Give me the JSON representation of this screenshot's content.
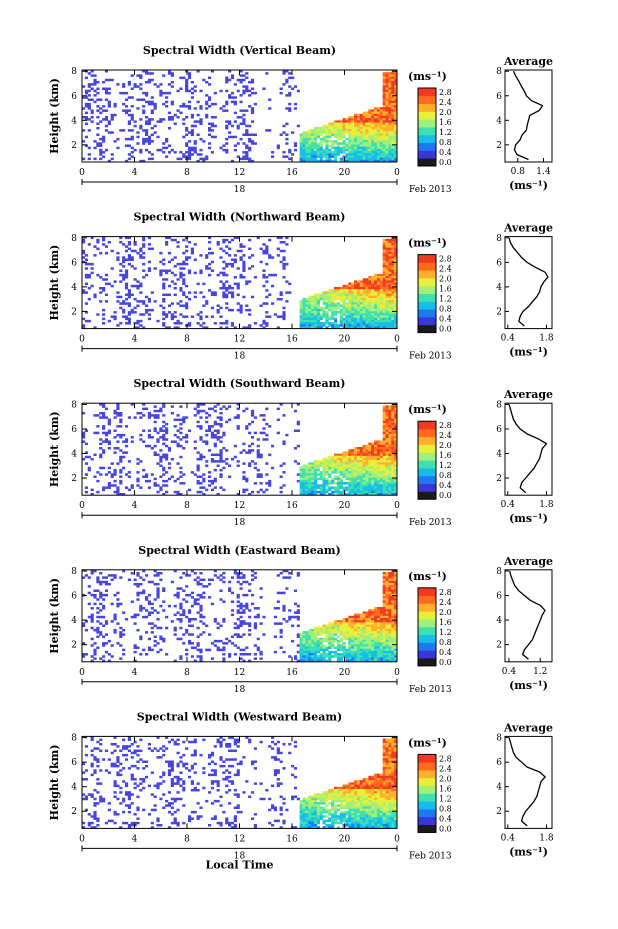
{
  "figure": {
    "x_axis_title": "Local Time",
    "date_label": "Feb 2013",
    "day_label": "18",
    "unit_label": "(ms⁻¹)",
    "colorbar_ticks": [
      "0.0",
      "0.4",
      "0.8",
      "1.2",
      "1.6",
      "2.0",
      "2.4",
      "2.8"
    ],
    "colormap": [
      "#1a1a1a",
      "#3a37d6",
      "#1e78f0",
      "#15bde8",
      "#3fe0b0",
      "#9ef07a",
      "#e8ee3a",
      "#ffb02a",
      "#ff6a1e",
      "#f03a22"
    ],
    "sparse_color": "#4646de",
    "avg_title": "Average",
    "avg_xlabel": "(ms⁻¹)"
  },
  "chart_data": [
    {
      "type": "heatmap",
      "title": "Spectral Width (Vertical Beam)",
      "xlabel": "",
      "ylabel": "Height (km)",
      "x_ticks": [
        "0",
        "4",
        "8",
        "12",
        "16",
        "20",
        "0"
      ],
      "xlim": [
        0,
        24
      ],
      "y_ticks": [
        "2",
        "4",
        "6",
        "8"
      ],
      "ylim": [
        0.6,
        8.1
      ],
      "profile": {
        "title": "Average",
        "xlabel": "(ms⁻¹)",
        "x_ticks": [
          "0.8",
          "1.4"
        ],
        "xlim": [
          0.5,
          1.6
        ],
        "ylim": [
          0.6,
          8.1
        ],
        "y_ticks": [
          "2",
          "4",
          "6",
          "8"
        ],
        "heights": [
          0.8,
          1.2,
          1.6,
          2.0,
          2.4,
          2.8,
          3.2,
          3.6,
          4.0,
          4.4,
          4.8,
          5.2,
          5.6,
          6.0,
          6.4,
          6.8,
          7.2,
          7.6,
          8.0
        ],
        "values": [
          1.05,
          0.78,
          0.72,
          0.75,
          0.85,
          0.9,
          1.0,
          1.02,
          1.05,
          1.08,
          1.3,
          1.38,
          1.12,
          1.0,
          0.95,
          0.88,
          0.82,
          0.75,
          0.7
        ]
      }
    },
    {
      "type": "heatmap",
      "title": "Spectral Width (Northward Beam)",
      "xlabel": "",
      "ylabel": "Height (km)",
      "x_ticks": [
        "0",
        "4",
        "8",
        "12",
        "16",
        "20",
        "0"
      ],
      "xlim": [
        0,
        24
      ],
      "y_ticks": [
        "2",
        "4",
        "6",
        "8"
      ],
      "ylim": [
        0.6,
        8.1
      ],
      "profile": {
        "title": "Average",
        "xlabel": "(ms⁻¹)",
        "x_ticks": [
          "0.4",
          "1.8"
        ],
        "xlim": [
          0.3,
          2.0
        ],
        "ylim": [
          0.6,
          8.1
        ],
        "y_ticks": [
          "2",
          "4",
          "6",
          "8"
        ],
        "heights": [
          0.8,
          1.2,
          1.6,
          2.0,
          2.4,
          2.8,
          3.2,
          3.6,
          4.0,
          4.4,
          4.8,
          5.2,
          5.6,
          6.0,
          6.4,
          6.8,
          7.2,
          7.6,
          8.0
        ],
        "values": [
          1.0,
          0.8,
          0.85,
          0.95,
          1.15,
          1.3,
          1.45,
          1.55,
          1.6,
          1.7,
          1.85,
          1.75,
          1.4,
          1.1,
          0.9,
          0.75,
          0.6,
          0.5,
          0.45
        ]
      }
    },
    {
      "type": "heatmap",
      "title": "Spectral Width (Southward Beam)",
      "xlabel": "",
      "ylabel": "Height (km)",
      "x_ticks": [
        "0",
        "4",
        "8",
        "12",
        "16",
        "20",
        "0"
      ],
      "xlim": [
        0,
        24
      ],
      "y_ticks": [
        "2",
        "4",
        "6",
        "8"
      ],
      "ylim": [
        0.6,
        8.1
      ],
      "profile": {
        "title": "Average",
        "xlabel": "(ms⁻¹)",
        "x_ticks": [
          "0.4",
          "1.8"
        ],
        "xlim": [
          0.3,
          2.0
        ],
        "ylim": [
          0.6,
          8.1
        ],
        "y_ticks": [
          "2",
          "4",
          "6",
          "8"
        ],
        "heights": [
          0.8,
          1.2,
          1.6,
          2.0,
          2.4,
          2.8,
          3.2,
          3.6,
          4.0,
          4.4,
          4.8,
          5.2,
          5.6,
          6.0,
          6.4,
          6.8,
          7.2,
          7.6,
          8.0
        ],
        "values": [
          1.05,
          0.85,
          0.9,
          1.05,
          1.2,
          1.35,
          1.45,
          1.55,
          1.6,
          1.65,
          1.8,
          1.5,
          1.1,
          0.85,
          0.7,
          0.6,
          0.55,
          0.5,
          0.45
        ]
      }
    },
    {
      "type": "heatmap",
      "title": "Spectral Width (Eastward Beam)",
      "xlabel": "",
      "ylabel": "Height (km)",
      "x_ticks": [
        "0",
        "4",
        "8",
        "12",
        "16",
        "20",
        "0"
      ],
      "xlim": [
        0,
        24
      ],
      "y_ticks": [
        "2",
        "4",
        "6",
        "8"
      ],
      "ylim": [
        0.6,
        8.1
      ],
      "profile": {
        "title": "Average",
        "xlabel": "(ms⁻¹)",
        "x_ticks": [
          "0.4",
          "1.2"
        ],
        "xlim": [
          0.3,
          1.5
        ],
        "ylim": [
          0.6,
          8.1
        ],
        "y_ticks": [
          "2",
          "4",
          "6",
          "8"
        ],
        "heights": [
          0.8,
          1.2,
          1.6,
          2.0,
          2.4,
          2.8,
          3.2,
          3.6,
          4.0,
          4.4,
          4.8,
          5.2,
          5.6,
          6.0,
          6.4,
          6.8,
          7.2,
          7.6,
          8.0
        ],
        "values": [
          0.9,
          0.75,
          0.8,
          0.9,
          1.0,
          1.05,
          1.1,
          1.15,
          1.2,
          1.25,
          1.32,
          1.2,
          0.95,
          0.8,
          0.65,
          0.55,
          0.5,
          0.45,
          0.42
        ]
      }
    },
    {
      "type": "heatmap",
      "title": "Spectral Width (Westward Beam)",
      "xlabel": "Local Time",
      "ylabel": "Height (km)",
      "x_ticks": [
        "0",
        "4",
        "8",
        "12",
        "16",
        "20",
        "0"
      ],
      "xlim": [
        0,
        24
      ],
      "y_ticks": [
        "2",
        "4",
        "6",
        "8"
      ],
      "ylim": [
        0.6,
        8.1
      ],
      "profile": {
        "title": "Average",
        "xlabel": "(ms⁻¹)",
        "x_ticks": [
          "0.4",
          "1.8"
        ],
        "xlim": [
          0.3,
          2.0
        ],
        "ylim": [
          0.6,
          8.1
        ],
        "y_ticks": [
          "2",
          "4",
          "6",
          "8"
        ],
        "heights": [
          0.8,
          1.2,
          1.6,
          2.0,
          2.4,
          2.8,
          3.2,
          3.6,
          4.0,
          4.4,
          4.8,
          5.2,
          5.6,
          6.0,
          6.4,
          6.8,
          7.2,
          7.6,
          8.0
        ],
        "values": [
          1.1,
          0.9,
          0.95,
          1.05,
          1.2,
          1.35,
          1.45,
          1.5,
          1.55,
          1.6,
          1.75,
          1.55,
          1.1,
          0.9,
          0.7,
          0.6,
          0.55,
          0.5,
          0.45
        ]
      }
    }
  ]
}
